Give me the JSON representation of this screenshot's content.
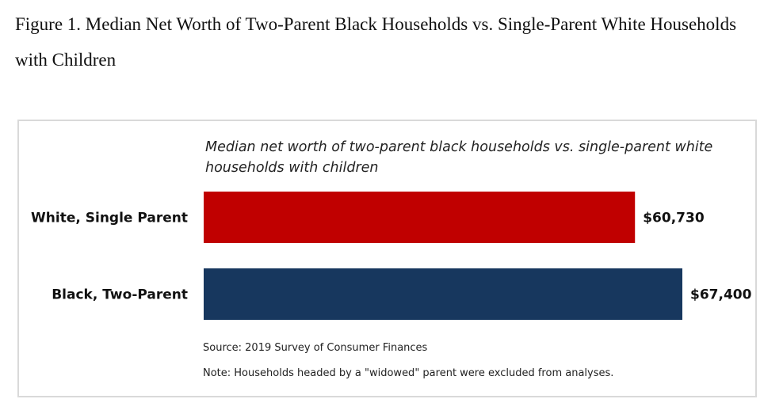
{
  "figure_caption": "Figure 1. Median Net Worth of Two-Parent Black Households vs. Single-Parent White Households with Children",
  "colors": {
    "white_single_parent": "#c00000",
    "black_two_parent": "#17375e",
    "frame_border": "#d9d9d9"
  },
  "chart_data": {
    "type": "bar",
    "orientation": "horizontal",
    "title": "Median net worth of two-parent black households vs. single-parent white households with children",
    "categories": [
      "White, Single Parent",
      "Black, Two-Parent"
    ],
    "values": [
      60730,
      67400
    ],
    "data_labels": [
      "$60,730",
      "$67,400"
    ],
    "xlim": [
      0,
      67400
    ],
    "axis_visible": false,
    "grid": false,
    "legend": "none"
  },
  "notes": {
    "source": "Source: 2019 Survey of Consumer Finances",
    "note": "Note: Households headed by a \"widowed\" parent were excluded from analyses."
  }
}
